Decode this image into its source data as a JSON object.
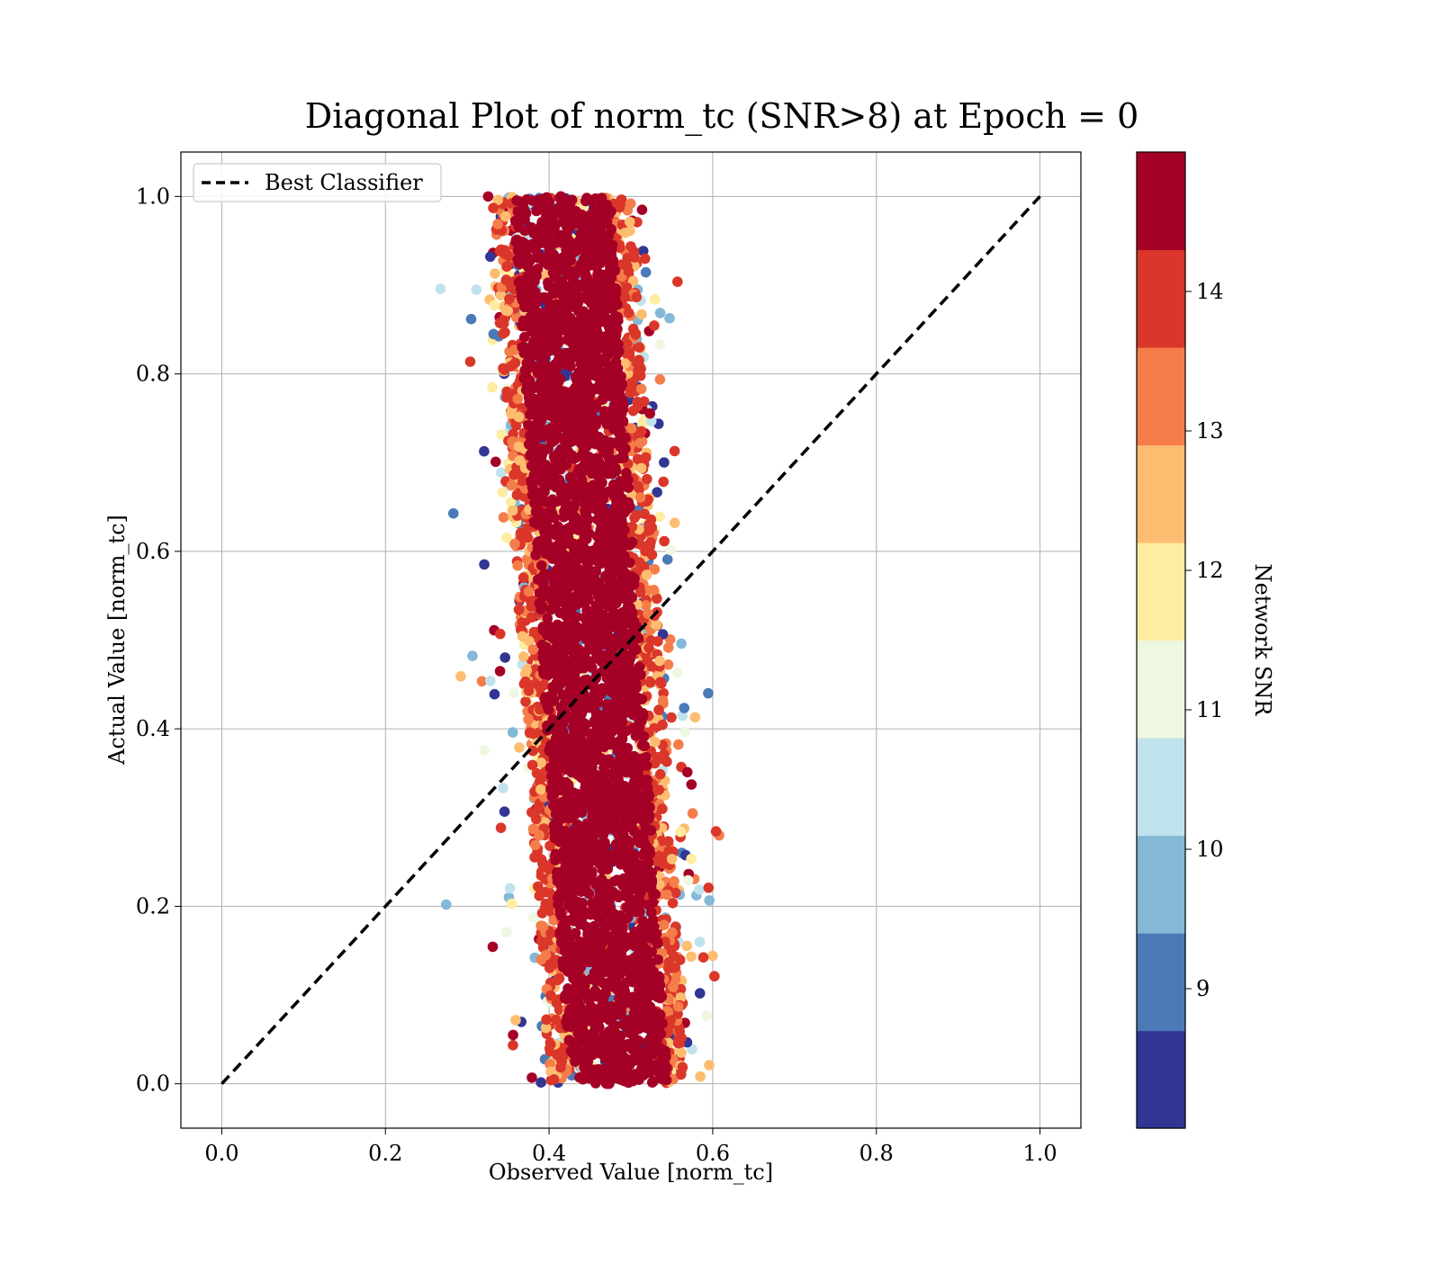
{
  "chart_data": {
    "type": "scatter",
    "title": "Diagonal Plot of norm_tc (SNR>8) at Epoch = 0",
    "xlabel": "Observed Value [norm_tc]",
    "ylabel": "Actual Value [norm_tc]",
    "xlim": [
      -0.05,
      1.05
    ],
    "ylim": [
      -0.05,
      1.05
    ],
    "xticks": [
      0.0,
      0.2,
      0.4,
      0.6,
      0.8,
      1.0
    ],
    "yticks": [
      0.0,
      0.2,
      0.4,
      0.6,
      0.8,
      1.0
    ],
    "x_tick_labels": [
      "0.0",
      "0.2",
      "0.4",
      "0.6",
      "0.8",
      "1.0"
    ],
    "y_tick_labels": [
      "0.0",
      "0.2",
      "0.4",
      "0.6",
      "0.8",
      "1.0"
    ],
    "grid": true,
    "legend": {
      "position": "top-left",
      "entries": [
        {
          "label": "Best Classifier",
          "style": "dashed",
          "color": "#000000"
        }
      ]
    },
    "reference_line": {
      "label": "Best Classifier",
      "x": [
        0.0,
        1.0
      ],
      "y": [
        0.0,
        1.0
      ],
      "style": "dashed",
      "color": "#000000"
    },
    "point_distribution": {
      "note_x_center_range": [
        0.42,
        0.48
      ],
      "x_range": [
        0.25,
        0.61
      ],
      "y_range": [
        0.0,
        1.0
      ]
    },
    "colorbar": {
      "label": "Network SNR",
      "range": [
        8,
        15
      ],
      "ticks": [
        9,
        10,
        11,
        12,
        13,
        14
      ],
      "tick_labels": [
        "9",
        "10",
        "11",
        "12",
        "13",
        "14"
      ],
      "bands": [
        {
          "from": 8.0,
          "to": 8.7,
          "color": "#313695"
        },
        {
          "from": 8.7,
          "to": 9.4,
          "color": "#4a7bb7"
        },
        {
          "from": 9.4,
          "to": 10.1,
          "color": "#83b8d7"
        },
        {
          "from": 10.1,
          "to": 10.8,
          "color": "#c0e2ec"
        },
        {
          "from": 10.8,
          "to": 11.5,
          "color": "#eef7e1"
        },
        {
          "from": 11.5,
          "to": 12.2,
          "color": "#feeda0"
        },
        {
          "from": 12.2,
          "to": 12.9,
          "color": "#fdbd70"
        },
        {
          "from": 12.9,
          "to": 13.6,
          "color": "#f57d4a"
        },
        {
          "from": 13.6,
          "to": 14.3,
          "color": "#da372a"
        },
        {
          "from": 14.3,
          "to": 15.0,
          "color": "#a50026"
        }
      ]
    }
  }
}
